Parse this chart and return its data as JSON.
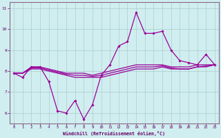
{
  "xlabel": "Windchill (Refroidissement éolien,°C)",
  "ylabel": "",
  "bg_color": "#d0eef0",
  "line_color": "#990099",
  "grid_color": "#aacccc",
  "axis_color": "#660066",
  "spine_color": "#886688",
  "xlim": [
    -0.5,
    23.5
  ],
  "ylim": [
    5.5,
    11.3
  ],
  "xticks": [
    0,
    1,
    2,
    3,
    4,
    5,
    6,
    7,
    8,
    9,
    10,
    11,
    12,
    13,
    14,
    15,
    16,
    17,
    18,
    19,
    20,
    21,
    22,
    23
  ],
  "yticks": [
    6,
    7,
    8,
    9,
    10,
    11
  ],
  "line1": [
    7.9,
    7.7,
    8.2,
    8.2,
    7.5,
    6.1,
    6.0,
    6.6,
    5.7,
    6.4,
    7.8,
    8.3,
    9.2,
    9.4,
    10.8,
    9.8,
    9.8,
    9.9,
    9.0,
    8.5,
    8.4,
    8.3,
    8.8,
    8.3
  ],
  "line2": [
    7.9,
    7.9,
    8.2,
    8.2,
    8.1,
    8.0,
    7.9,
    7.9,
    7.9,
    7.8,
    7.9,
    8.0,
    8.1,
    8.2,
    8.3,
    8.3,
    8.3,
    8.3,
    8.2,
    8.2,
    8.2,
    8.3,
    8.3,
    8.3
  ],
  "line3": [
    7.9,
    7.9,
    8.1,
    8.1,
    8.0,
    7.9,
    7.8,
    7.7,
    7.7,
    7.7,
    7.7,
    7.8,
    7.9,
    8.0,
    8.1,
    8.1,
    8.1,
    8.2,
    8.1,
    8.1,
    8.1,
    8.2,
    8.2,
    8.3
  ],
  "line4": [
    7.9,
    7.9,
    8.15,
    8.15,
    8.05,
    7.95,
    7.85,
    7.8,
    7.8,
    7.75,
    7.8,
    7.9,
    8.0,
    8.1,
    8.2,
    8.2,
    8.2,
    8.25,
    8.15,
    8.1,
    8.1,
    8.2,
    8.25,
    8.3
  ]
}
